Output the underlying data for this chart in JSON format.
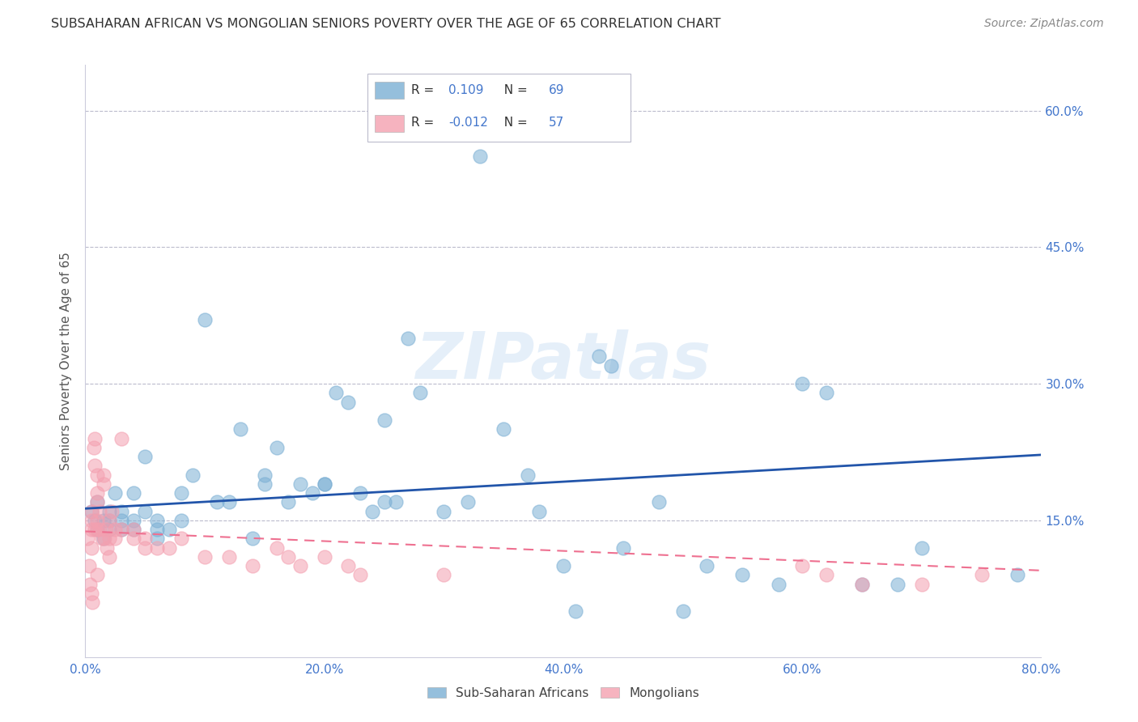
{
  "title": "SUBSAHARAN AFRICAN VS MONGOLIAN SENIORS POVERTY OVER THE AGE OF 65 CORRELATION CHART",
  "source": "Source: ZipAtlas.com",
  "ylabel": "Seniors Poverty Over the Age of 65",
  "ytick_labels": [
    "15.0%",
    "30.0%",
    "45.0%",
    "60.0%"
  ],
  "ytick_values": [
    0.15,
    0.3,
    0.45,
    0.6
  ],
  "xlim": [
    0.0,
    0.8
  ],
  "ylim": [
    0.0,
    0.65
  ],
  "blue_R": 0.109,
  "blue_N": 69,
  "pink_R": -0.012,
  "pink_N": 57,
  "blue_label": "Sub-Saharan Africans",
  "pink_label": "Mongolians",
  "blue_color": "#7BAFD4",
  "pink_color": "#F4A0B0",
  "blue_trend_color": "#2255AA",
  "pink_trend_color": "#EE7090",
  "watermark": "ZIPatlas",
  "background_color": "#FFFFFF",
  "blue_x": [
    0.005,
    0.008,
    0.01,
    0.01,
    0.015,
    0.015,
    0.02,
    0.02,
    0.02,
    0.025,
    0.03,
    0.03,
    0.03,
    0.04,
    0.04,
    0.04,
    0.05,
    0.05,
    0.06,
    0.06,
    0.06,
    0.07,
    0.08,
    0.08,
    0.09,
    0.1,
    0.11,
    0.12,
    0.13,
    0.14,
    0.15,
    0.15,
    0.16,
    0.17,
    0.18,
    0.19,
    0.2,
    0.2,
    0.21,
    0.22,
    0.23,
    0.24,
    0.25,
    0.25,
    0.26,
    0.27,
    0.28,
    0.3,
    0.32,
    0.33,
    0.35,
    0.37,
    0.38,
    0.4,
    0.41,
    0.43,
    0.44,
    0.45,
    0.48,
    0.5,
    0.52,
    0.55,
    0.58,
    0.6,
    0.62,
    0.65,
    0.68,
    0.7,
    0.78
  ],
  "blue_y": [
    0.16,
    0.15,
    0.17,
    0.14,
    0.15,
    0.13,
    0.16,
    0.15,
    0.14,
    0.18,
    0.16,
    0.15,
    0.14,
    0.18,
    0.15,
    0.14,
    0.22,
    0.16,
    0.15,
    0.14,
    0.13,
    0.14,
    0.18,
    0.15,
    0.2,
    0.37,
    0.17,
    0.17,
    0.25,
    0.13,
    0.2,
    0.19,
    0.23,
    0.17,
    0.19,
    0.18,
    0.19,
    0.19,
    0.29,
    0.28,
    0.18,
    0.16,
    0.17,
    0.26,
    0.17,
    0.35,
    0.29,
    0.16,
    0.17,
    0.55,
    0.25,
    0.2,
    0.16,
    0.1,
    0.05,
    0.33,
    0.32,
    0.12,
    0.17,
    0.05,
    0.1,
    0.09,
    0.08,
    0.3,
    0.29,
    0.08,
    0.08,
    0.12,
    0.09
  ],
  "pink_x": [
    0.002,
    0.003,
    0.004,
    0.005,
    0.005,
    0.005,
    0.005,
    0.005,
    0.006,
    0.007,
    0.008,
    0.008,
    0.008,
    0.01,
    0.01,
    0.01,
    0.01,
    0.01,
    0.01,
    0.012,
    0.012,
    0.014,
    0.015,
    0.015,
    0.016,
    0.017,
    0.018,
    0.02,
    0.02,
    0.02,
    0.022,
    0.025,
    0.025,
    0.03,
    0.03,
    0.04,
    0.04,
    0.05,
    0.05,
    0.06,
    0.07,
    0.08,
    0.1,
    0.12,
    0.14,
    0.16,
    0.17,
    0.18,
    0.2,
    0.22,
    0.23,
    0.3,
    0.6,
    0.62,
    0.65,
    0.7,
    0.75
  ],
  "pink_y": [
    0.13,
    0.1,
    0.08,
    0.16,
    0.15,
    0.14,
    0.12,
    0.07,
    0.06,
    0.23,
    0.24,
    0.21,
    0.14,
    0.2,
    0.18,
    0.17,
    0.15,
    0.14,
    0.09,
    0.16,
    0.14,
    0.13,
    0.2,
    0.19,
    0.13,
    0.14,
    0.12,
    0.15,
    0.13,
    0.11,
    0.16,
    0.14,
    0.13,
    0.24,
    0.14,
    0.14,
    0.13,
    0.13,
    0.12,
    0.12,
    0.12,
    0.13,
    0.11,
    0.11,
    0.1,
    0.12,
    0.11,
    0.1,
    0.11,
    0.1,
    0.09,
    0.09,
    0.1,
    0.09,
    0.08,
    0.08,
    0.09
  ],
  "blue_trend_x0": 0.0,
  "blue_trend_y0": 0.163,
  "blue_trend_x1": 0.8,
  "blue_trend_y1": 0.222,
  "pink_trend_x0": 0.0,
  "pink_trend_y0": 0.138,
  "pink_trend_x1": 0.8,
  "pink_trend_y1": 0.095
}
